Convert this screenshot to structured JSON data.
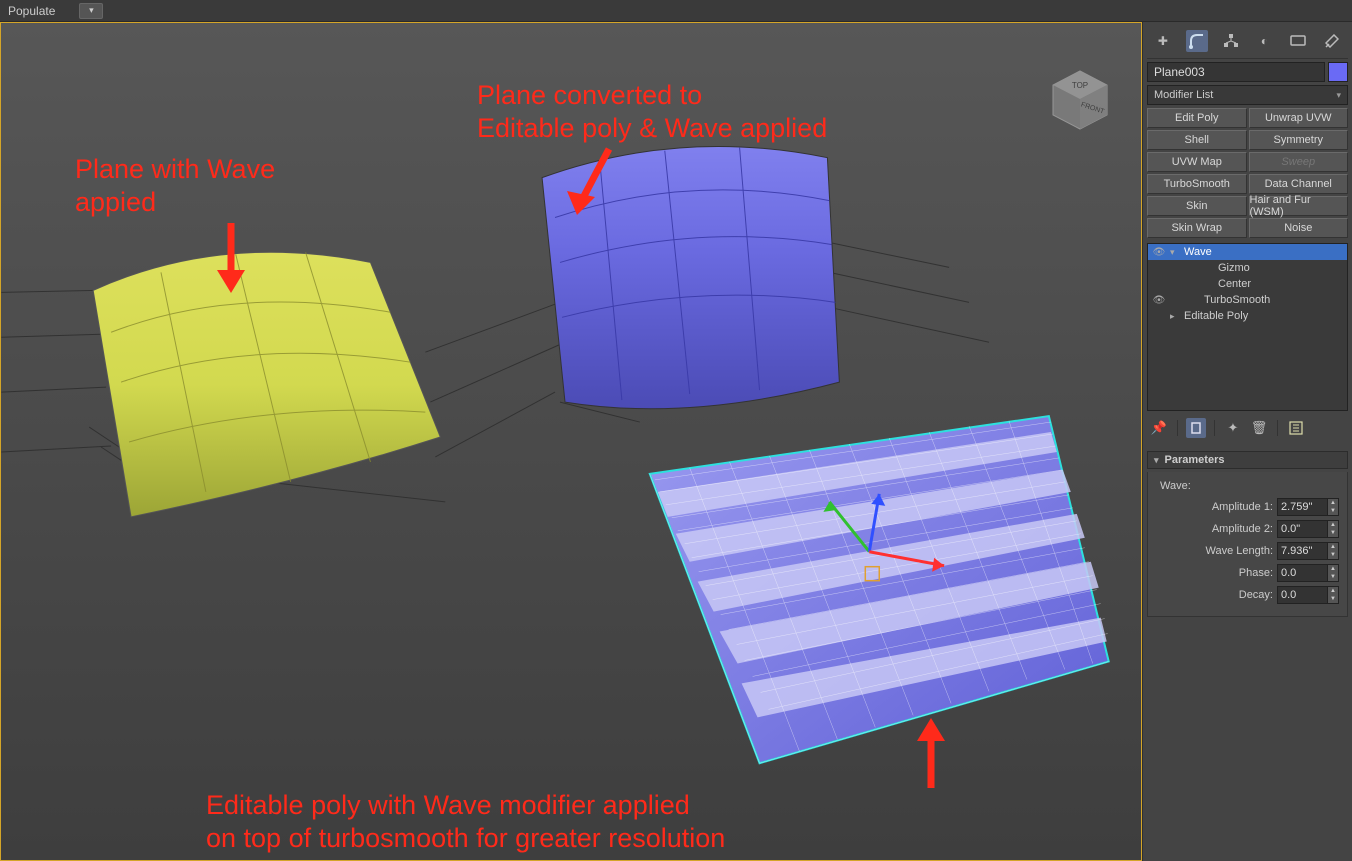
{
  "topbar": {
    "menu1": "Populate",
    "arrow_glyph": "▾"
  },
  "panel": {
    "object_name": "Plane003",
    "swatch_color": "#6a6af5",
    "modifier_list_label": "Modifier List",
    "buttons": [
      {
        "label": "Edit Poly",
        "disabled": false
      },
      {
        "label": "Unwrap UVW",
        "disabled": false
      },
      {
        "label": "Shell",
        "disabled": false
      },
      {
        "label": "Symmetry",
        "disabled": false
      },
      {
        "label": "UVW Map",
        "disabled": false
      },
      {
        "label": "Sweep",
        "disabled": true
      },
      {
        "label": "TurboSmooth",
        "disabled": false
      },
      {
        "label": "Data Channel",
        "disabled": false
      },
      {
        "label": "Skin",
        "disabled": false
      },
      {
        "label": "Hair and Fur (WSM)",
        "disabled": false
      },
      {
        "label": "Skin Wrap",
        "disabled": false
      },
      {
        "label": "Noise",
        "disabled": false
      }
    ],
    "stack": [
      {
        "eye": true,
        "tw": "▾",
        "indent": 0,
        "label": "Wave",
        "selected": true
      },
      {
        "eye": false,
        "tw": "",
        "indent": 2,
        "label": "Gizmo",
        "selected": false
      },
      {
        "eye": false,
        "tw": "",
        "indent": 2,
        "label": "Center",
        "selected": false
      },
      {
        "eye": true,
        "tw": "",
        "indent": 1,
        "label": "TurboSmooth",
        "selected": false
      },
      {
        "eye": false,
        "tw": "▸",
        "indent": 0,
        "label": "Editable Poly",
        "selected": false
      }
    ],
    "rollout_title": "Parameters",
    "wave_label": "Wave:",
    "params": [
      {
        "label": "Amplitude 1:",
        "value": "2.759\""
      },
      {
        "label": "Amplitude 2:",
        "value": "0.0\""
      },
      {
        "label": "Wave Length:",
        "value": "7.936\""
      },
      {
        "label": "Phase:",
        "value": "0.0"
      },
      {
        "label": "Decay:",
        "value": "0.0"
      }
    ]
  },
  "annotations": {
    "a1_line1": "Plane with Wave",
    "a1_line2": "appied",
    "a2_line1": "Plane converted to",
    "a2_line2": "Editable poly & Wave applied",
    "a3_line1": "Editable poly with Wave modifier applied",
    "a3_line2": "on top of turbosmooth for greater resolution"
  },
  "colors": {
    "annotation": "#ff2a1a",
    "viewport_border": "#d4a528",
    "plane_yellow": "#d2d94f",
    "plane_yellow_dark": "#9ca536",
    "plane_blue": "#6a6ae0",
    "plane_blue_dark": "#4b4bb5",
    "plane_wave": "#7b7be8",
    "plane_wave_light": "#bcbcf3",
    "wire_sel": "#2de0de",
    "wire_white": "#ffffff",
    "gizmo_red": "#ff3030",
    "gizmo_green": "#30c030",
    "gizmo_blue": "#3050ff"
  },
  "viewcube": {
    "top": "TOP",
    "front": "FRONT"
  }
}
